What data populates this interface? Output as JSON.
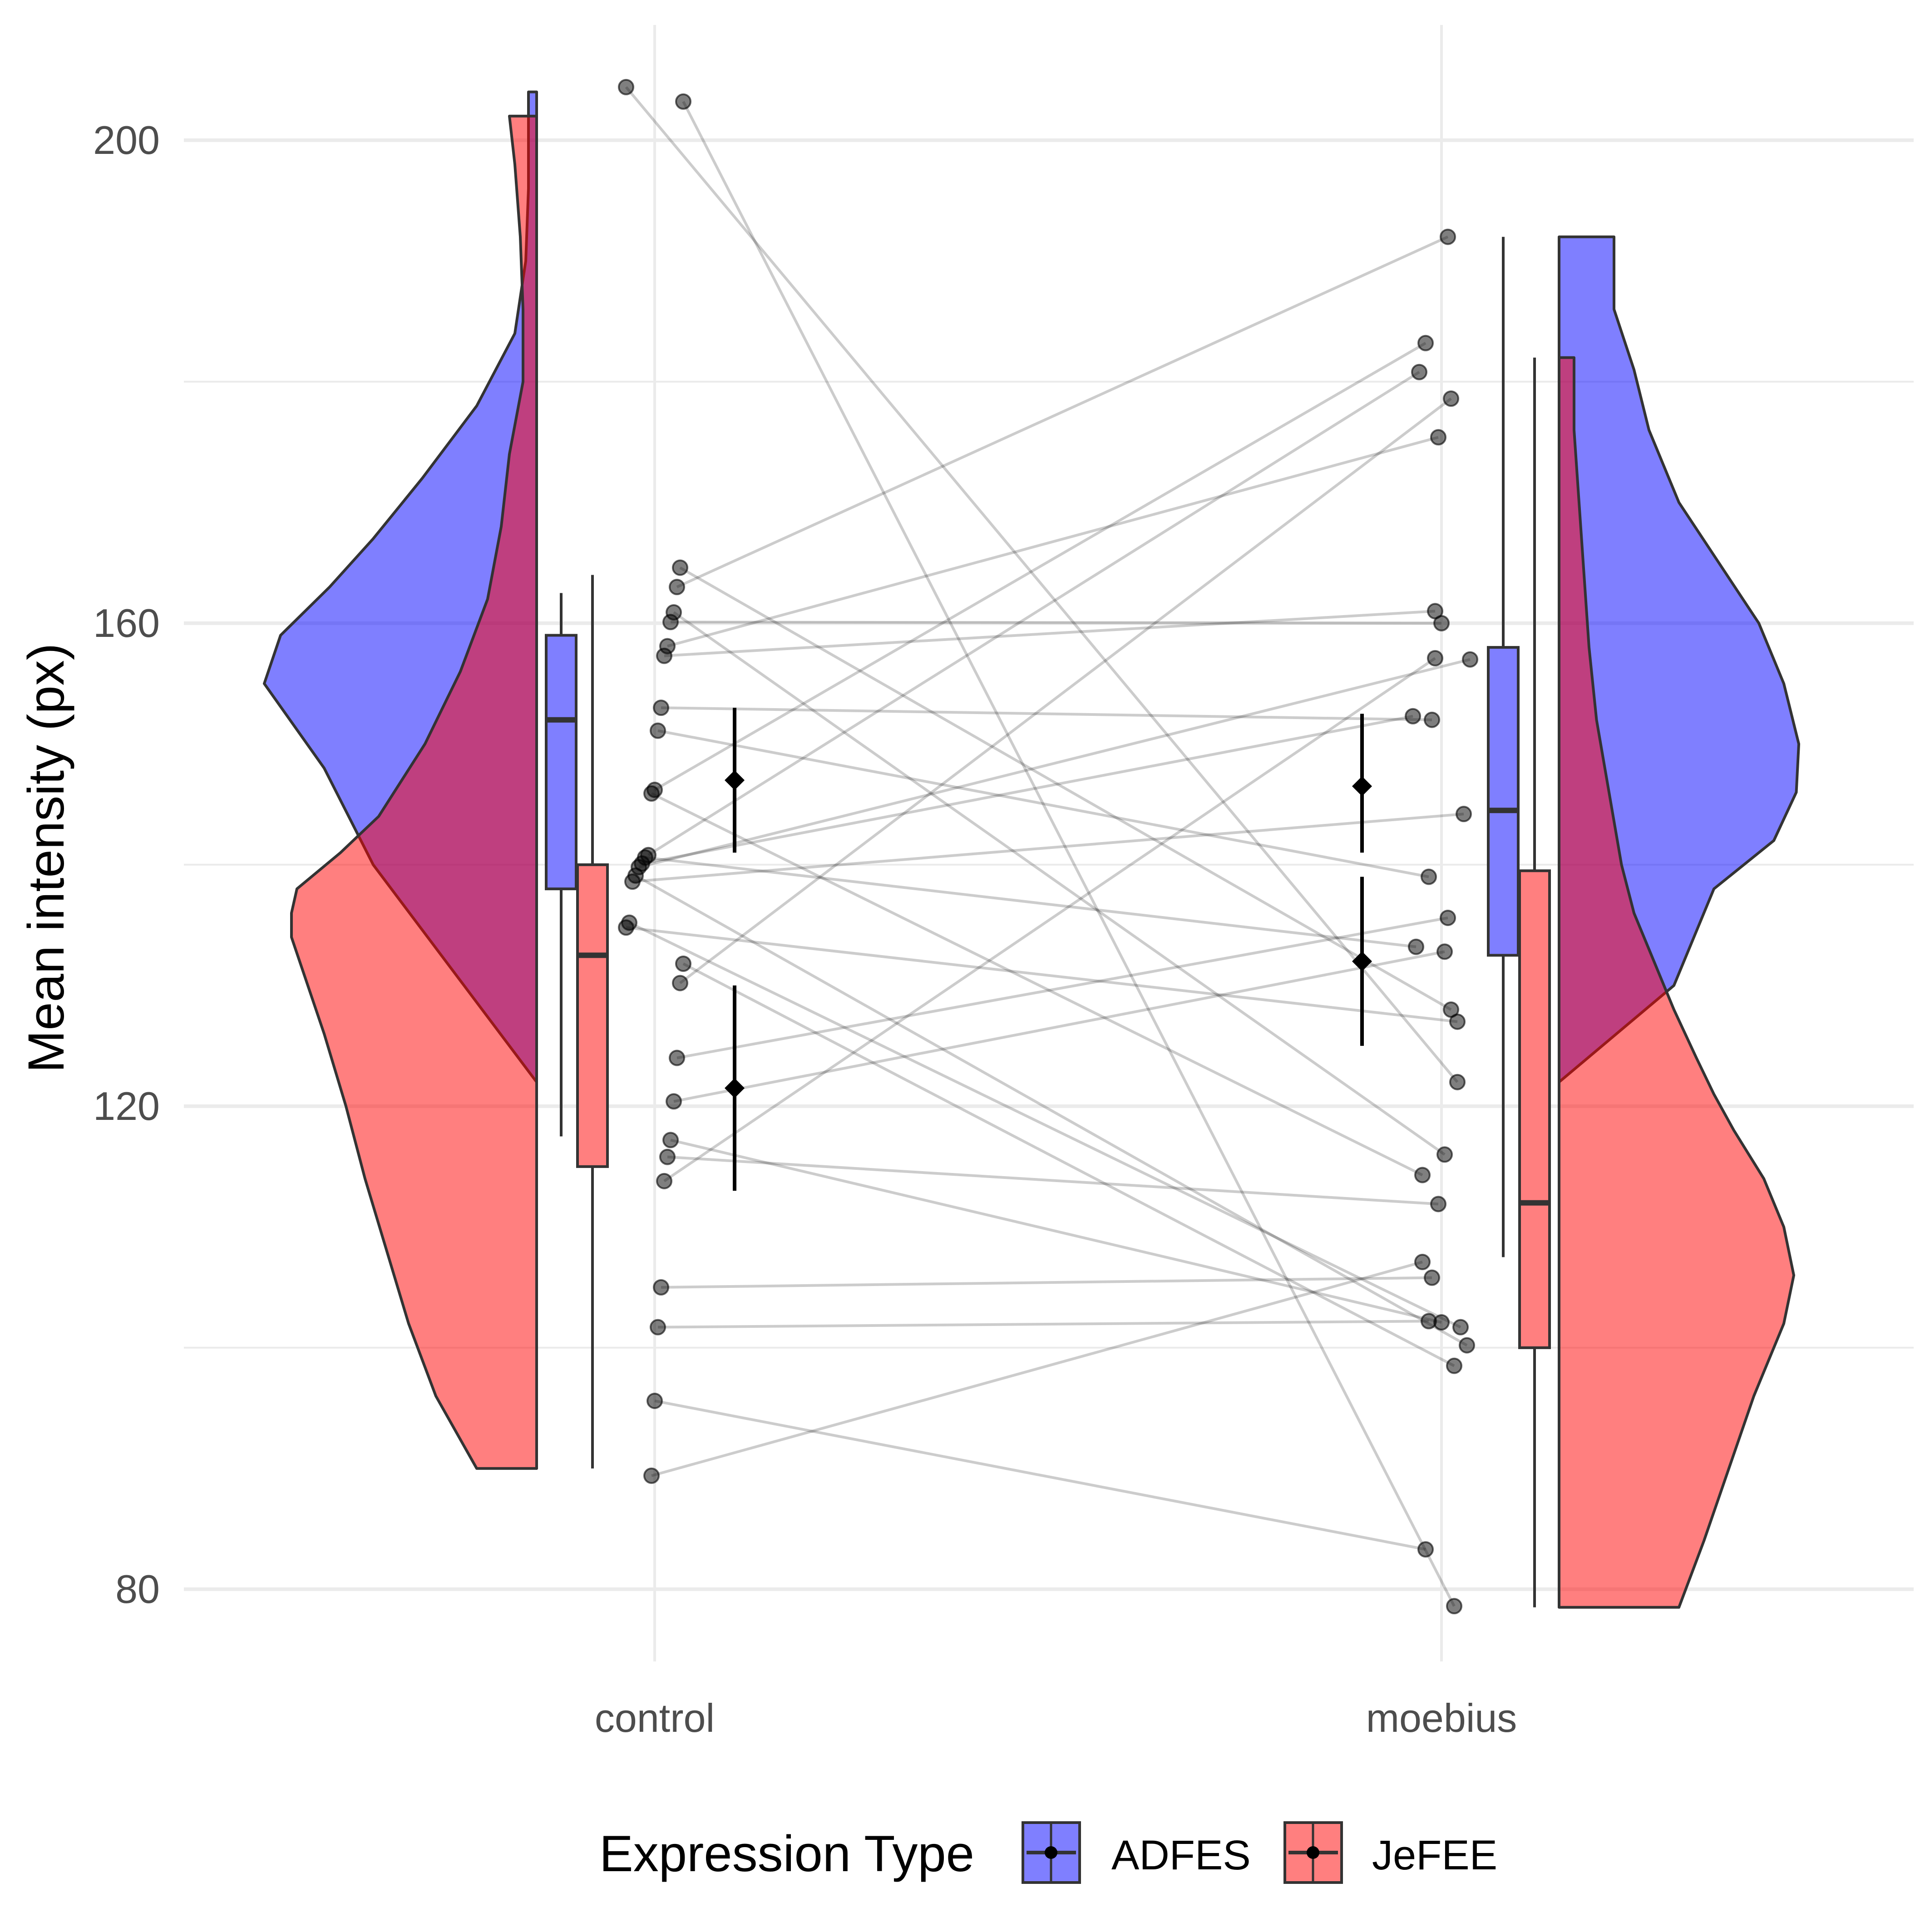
{
  "chart_data": {
    "type": "raincloud",
    "ylabel": "Mean intensity (px)",
    "xlabel": "",
    "categories": [
      "control",
      "moebius"
    ],
    "ylim": [
      73,
      210
    ],
    "yticks": [
      80,
      120,
      160,
      200
    ],
    "grid": true,
    "legend": {
      "title": "Expression Type",
      "position": "bottom",
      "entries": [
        "ADFES",
        "JeFEE"
      ]
    },
    "colors": {
      "ADFES": "#7f7fff",
      "JeFEE": "#ff7f7f",
      "overlap": "#c03c7a",
      "points": "#666666",
      "lines": "#bfbfbf"
    },
    "series": [
      {
        "name": "ADFES",
        "boxes": {
          "control": {
            "whisker_low": 117.5,
            "q1": 138,
            "median": 152,
            "q3": 159,
            "whisker_high": 162.5
          },
          "moebius": {
            "whisker_low": 107.5,
            "q1": 132.5,
            "median": 144.5,
            "q3": 158,
            "whisker_high": 192
          }
        },
        "mean": {
          "control": 147,
          "moebius": 146.5
        },
        "ci": {
          "control": [
            141,
            153
          ],
          "moebius": [
            141,
            152.5
          ]
        },
        "density": {
          "control": {
            "y": [
              90,
              122,
              140,
              148,
              155,
              159,
              163,
              167,
              172,
              178,
              184,
              190,
              196,
              202,
              204
            ],
            "w": [
              0,
              0,
              0.6,
              0.78,
              1.0,
              0.94,
              0.76,
              0.6,
              0.42,
              0.22,
              0.08,
              0.04,
              0.03,
              0.03,
              0.03
            ]
          },
          "moebius": {
            "y": [
              79,
              122,
              130,
              138,
              142,
              146,
              150,
              155,
              160,
              165,
              170,
              176,
              181,
              186,
              192
            ],
            "w": [
              0,
              0,
              0.46,
              0.62,
              0.86,
              0.95,
              0.96,
              0.9,
              0.8,
              0.64,
              0.48,
              0.36,
              0.3,
              0.22,
              0.22
            ]
          }
        }
      },
      {
        "name": "JeFEE",
        "boxes": {
          "control": {
            "whisker_low": 90,
            "q1": 115,
            "median": 132.5,
            "q3": 140,
            "whisker_high": 164
          },
          "moebius": {
            "whisker_low": 78.5,
            "q1": 100,
            "median": 112,
            "q3": 139.5,
            "whisker_high": 182
          }
        },
        "mean": {
          "control": 121.5,
          "moebius": 132
        },
        "ci": {
          "control": [
            113,
            130
          ],
          "moebius": [
            125,
            139
          ]
        },
        "density": {
          "control": {
            "y": [
              90,
              96,
              102,
              108,
              114,
              120,
              126,
              130,
              134,
              136,
              138,
              141,
              144,
              150,
              156,
              162,
              168,
              174,
              180,
              186,
              192,
              198,
              202
            ],
            "w": [
              0.22,
              0.37,
              0.47,
              0.55,
              0.63,
              0.7,
              0.78,
              0.84,
              0.9,
              0.9,
              0.88,
              0.72,
              0.58,
              0.41,
              0.28,
              0.18,
              0.13,
              0.1,
              0.05,
              0.05,
              0.06,
              0.08,
              0.1
            ]
          },
          "moebius": {
            "y": [
              78.5,
              84,
              90,
              96,
              102,
              106,
              110,
              114,
              118,
              121,
              124,
              128,
              132,
              136,
              140,
              146,
              152,
              158,
              164,
              170,
              176,
              182
            ],
            "w": [
              0.48,
              0.58,
              0.68,
              0.78,
              0.9,
              0.94,
              0.9,
              0.82,
              0.7,
              0.62,
              0.55,
              0.46,
              0.38,
              0.3,
              0.25,
              0.2,
              0.15,
              0.12,
              0.1,
              0.08,
              0.06,
              0.06
            ]
          }
        }
      }
    ],
    "pairs": [
      {
        "control": 204.4,
        "moebius": 122
      },
      {
        "control": 203.2,
        "moebius": 78.6
      },
      {
        "control": 164.6,
        "moebius": 128
      },
      {
        "control": 163,
        "moebius": 192
      },
      {
        "control": 160.9,
        "moebius": 116
      },
      {
        "control": 160.1,
        "moebius": 160
      },
      {
        "control": 158.1,
        "moebius": 175.4
      },
      {
        "control": 157.3,
        "moebius": 161
      },
      {
        "control": 153,
        "moebius": 152
      },
      {
        "control": 151.1,
        "moebius": 139
      },
      {
        "control": 146.2,
        "moebius": 183.2
      },
      {
        "control": 145.9,
        "moebius": 114.3
      },
      {
        "control": 140.8,
        "moebius": 180.8
      },
      {
        "control": 140.6,
        "moebius": 133.2
      },
      {
        "control": 140.1,
        "moebius": 152.3
      },
      {
        "control": 139.8,
        "moebius": 157
      },
      {
        "control": 139.1,
        "moebius": 100.2
      },
      {
        "control": 138.6,
        "moebius": 144.2
      },
      {
        "control": 135.2,
        "moebius": 101.7
      },
      {
        "control": 134.8,
        "moebius": 127
      },
      {
        "control": 131.8,
        "moebius": 98.5
      },
      {
        "control": 130.2,
        "moebius": 178.6
      },
      {
        "control": 124,
        "moebius": 135.6
      },
      {
        "control": 120.4,
        "moebius": 132.8
      },
      {
        "control": 117.2,
        "moebius": 102.1
      },
      {
        "control": 115.8,
        "moebius": 111.9
      },
      {
        "control": 113.8,
        "moebius": 157.1
      },
      {
        "control": 105,
        "moebius": 105.8
      },
      {
        "control": 101.7,
        "moebius": 102.2
      },
      {
        "control": 95.6,
        "moebius": 83.3
      },
      {
        "control": 89.4,
        "moebius": 107.1
      }
    ]
  }
}
